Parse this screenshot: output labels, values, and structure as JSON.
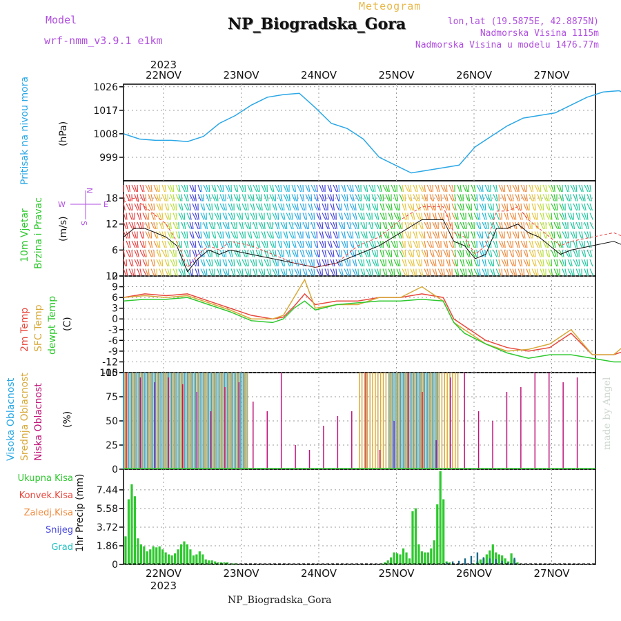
{
  "header": {
    "model_label": "Model",
    "model_value": "wrf-nmm_v3.9.1  e1km",
    "product": "Meteogram",
    "title": "NP_Biogradska_Gora",
    "lonlat": "lon,lat (19.5875E, 42.8875N)",
    "altitude": "Nadmorska Visina 1115m",
    "model_altitude": "Nadmorska Visina u modelu 1476.77m",
    "credit": "made by Angel",
    "bottom_name": "NP_Biogradska_Gora"
  },
  "colors": {
    "pressure": "#2aa7e6",
    "temp2m": "#e8473c",
    "sfc": "#d8a93a",
    "dewpt": "#2ec82e",
    "high_cloud": "#2aa7e6",
    "mid_cloud": "#d8a93a",
    "low_cloud": "#c0157a",
    "total_rain": "#2ec82e",
    "conv_rain": "#e8473c",
    "frz_rain": "#f08a3c",
    "snow": "#4444dd",
    "hail": "#1fc0c0",
    "axis_label_purple": "#b04fe0"
  },
  "time_axis": {
    "year": "2023",
    "days": [
      "22NOV",
      "23NOV",
      "24NOV",
      "25NOV",
      "26NOV",
      "27NOV"
    ]
  },
  "panels": {
    "pressure": {
      "label_colored": "Pritisak na nivou mora",
      "unit": "(hPa)"
    },
    "wind": {
      "label_colored_1": "10m Vjetar",
      "label_colored_2": "Brzina i Pravac",
      "unit": "(m/s)",
      "compass_n": "N",
      "compass_s": "S",
      "compass_w": "W",
      "compass_e": "E"
    },
    "temp": {
      "label_2m": "2m Temp",
      "label_sfc": "SFC Temp",
      "label_dew": "dewpt Temp",
      "unit": "(C)"
    },
    "cloud": {
      "label_high": "Visoka Oblacnost",
      "label_mid": "Srednja Oblacnost",
      "label_low": "Niska Oblacnost",
      "unit": "(%)"
    },
    "precip": {
      "axis_label": "1hr Precip (mm)",
      "legend": [
        "Ukupna Kisa",
        "Konvek.Kisa",
        "Zaledj.Kisa",
        "Snijeg",
        "Grad"
      ]
    }
  },
  "chart_data": [
    {
      "type": "line",
      "id": "pressure",
      "ylabel": "(hPa)",
      "yticks": [
        "1026",
        "1017",
        "1008",
        "999"
      ],
      "ylim": [
        990,
        1027
      ],
      "x_hours": [
        0,
        6,
        12,
        18,
        24,
        30,
        36,
        42,
        48,
        54,
        60,
        66,
        72,
        78,
        84,
        90,
        96,
        102,
        108,
        114,
        120,
        126,
        132,
        138,
        144
      ],
      "series": [
        {
          "values": [
            1008,
            1006,
            1005.5,
            1005.5,
            1005,
            1007,
            1012,
            1015,
            1019,
            1022,
            1023,
            1023.5,
            1018,
            1012,
            1010,
            1006,
            999,
            996,
            993,
            994,
            995,
            996,
            1003,
            1007,
            1011,
            1014,
            1015,
            1016,
            1019,
            1022,
            1024,
            1024.5,
            1022
          ],
          "x_hours": [
            0,
            6,
            12,
            18,
            24,
            30,
            36,
            42,
            48,
            54,
            60,
            66,
            72,
            78,
            84,
            90,
            96,
            102,
            108,
            114,
            120,
            126,
            132,
            138,
            144,
            150,
            156,
            162,
            168,
            174,
            180,
            186,
            192
          ]
        }
      ]
    },
    {
      "type": "line",
      "id": "wind_speed",
      "ylabel": "(m/s)",
      "yticks": [
        "18",
        "12",
        "6",
        "0"
      ],
      "ylim": [
        0,
        22
      ],
      "series": [
        {
          "values": [
            9,
            11,
            11,
            10,
            9,
            7,
            1,
            4,
            6,
            5,
            6,
            5,
            4,
            3,
            2,
            3,
            5,
            7,
            10,
            13,
            13,
            8,
            7,
            4,
            5,
            11,
            11,
            12,
            10,
            9,
            7,
            5,
            6,
            7,
            8,
            6
          ],
          "x_hours": [
            0,
            4,
            8,
            12,
            16,
            20,
            24,
            28,
            32,
            36,
            40,
            48,
            56,
            64,
            72,
            80,
            88,
            96,
            104,
            112,
            120,
            124,
            128,
            132,
            136,
            140,
            144,
            148,
            152,
            156,
            160,
            164,
            168,
            176,
            184,
            192
          ]
        },
        {
          "values": [
            17,
            18,
            16,
            14,
            12,
            8,
            2,
            5,
            7,
            6,
            8,
            7,
            5,
            3,
            2,
            3,
            7,
            9,
            13,
            16,
            16,
            10,
            9,
            5,
            7,
            15,
            15,
            16,
            13,
            11,
            9,
            7,
            8,
            9,
            10,
            8
          ],
          "x_hours": [
            0,
            4,
            8,
            12,
            16,
            20,
            24,
            28,
            32,
            36,
            40,
            48,
            56,
            64,
            72,
            80,
            88,
            96,
            104,
            112,
            120,
            124,
            128,
            132,
            136,
            140,
            144,
            148,
            152,
            156,
            160,
            164,
            168,
            176,
            184,
            192
          ]
        }
      ]
    },
    {
      "type": "line",
      "id": "temperature",
      "ylabel": "(C)",
      "yticks": [
        "12",
        "9",
        "6",
        "3",
        "0",
        "-3",
        "-6",
        "-9",
        "-12",
        "-15"
      ],
      "ylim": [
        -15,
        12
      ],
      "x_hours": [
        0,
        8,
        16,
        24,
        32,
        40,
        48,
        56,
        60,
        64,
        68,
        72,
        80,
        88,
        96,
        104,
        112,
        120,
        124,
        128,
        136,
        144,
        152,
        160,
        168,
        176,
        184,
        192
      ],
      "series": [
        {
          "name": "2m Temp",
          "values": [
            6,
            7,
            6.5,
            7,
            5,
            3,
            1,
            0,
            0.5,
            3.5,
            7,
            4,
            5,
            5,
            6,
            6,
            7,
            6,
            0,
            -2,
            -6,
            -8,
            -9,
            -8,
            -4,
            -10,
            -10,
            -8
          ]
        },
        {
          "name": "SFC Temp",
          "values": [
            6,
            6.5,
            6,
            6.5,
            4.5,
            2.5,
            0,
            0,
            1,
            6,
            11,
            3,
            4,
            4,
            6,
            6,
            9,
            5,
            -1,
            -3,
            -7,
            -9,
            -8.5,
            -7,
            -3,
            -10,
            -10,
            -5
          ]
        },
        {
          "name": "dewpt Temp",
          "values": [
            5,
            5.5,
            5.5,
            6,
            4,
            2,
            -0.5,
            -1,
            0,
            3,
            5,
            2.5,
            4,
            4.5,
            5,
            5,
            5.5,
            5,
            -1,
            -4,
            -7,
            -9.5,
            -11,
            -10,
            -10,
            -11,
            -12,
            -12
          ]
        }
      ]
    },
    {
      "type": "bar",
      "id": "cloud_cover",
      "ylabel": "(%)",
      "yticks": [
        "100",
        "75",
        "50",
        "25",
        "0"
      ],
      "ylim": [
        0,
        100
      ],
      "series": [
        {
          "name": "Visoka Oblacnost",
          "segments": [
            [
              0,
              46
            ],
            [
              100,
              118
            ]
          ],
          "value": 100
        },
        {
          "name": "Srednja Oblacnost",
          "segments": [
            [
              0,
              46
            ],
            [
              88,
              125
            ]
          ],
          "value": 100
        },
        {
          "name": "Niska Oblacnost",
          "sparse_values": [
            100,
            95,
            90,
            95,
            88,
            80,
            60,
            85,
            90,
            70,
            60,
            100,
            25,
            20,
            45,
            55,
            60,
            100,
            20,
            50,
            100,
            80,
            30,
            95,
            100,
            60,
            50,
            80,
            85,
            100,
            100,
            90,
            95
          ]
        }
      ]
    },
    {
      "type": "bar",
      "id": "precipitation",
      "ylabel": "1hr Precip (mm)",
      "yticks": [
        "7.44",
        "5.58",
        "3.72",
        "1.86",
        "0"
      ],
      "ylim": [
        0,
        9.5
      ],
      "series": [
        {
          "name": "Ukupna Kisa",
          "x_hours": [
            0,
            1,
            2,
            3,
            4,
            5,
            6,
            7,
            8,
            9,
            10,
            11,
            12,
            13,
            14,
            15,
            16,
            17,
            18,
            19,
            20,
            21,
            22,
            23,
            24,
            25,
            26,
            27,
            28,
            29,
            30,
            31,
            32,
            33,
            34,
            35,
            36,
            37,
            38,
            39,
            40,
            41,
            42,
            43,
            44,
            45,
            46,
            47,
            48,
            49,
            50,
            51,
            52,
            53,
            54,
            55,
            56,
            57,
            58,
            59,
            60,
            61,
            62,
            63,
            64,
            65,
            66,
            67,
            68,
            69,
            70,
            71,
            72,
            73,
            74,
            75,
            76,
            77,
            78,
            79,
            80,
            81,
            82,
            83,
            84,
            85,
            86,
            87,
            88,
            89,
            90,
            91,
            92,
            93,
            94,
            95,
            96,
            97,
            98,
            99,
            100,
            101,
            102,
            103,
            104,
            105,
            106,
            107,
            108,
            109,
            110,
            111,
            112,
            113,
            114,
            115,
            116,
            117,
            118,
            119,
            120,
            121,
            122,
            123,
            124,
            125,
            126,
            127,
            128,
            129,
            130,
            131,
            132,
            133,
            134,
            135,
            136,
            137,
            138,
            139,
            140,
            141,
            142,
            143,
            144
          ],
          "values": [
            2.8,
            6.5,
            8,
            6.8,
            2.6,
            2.0,
            1.8,
            1.3,
            1.5,
            1.8,
            1.7,
            1.8,
            1.5,
            1.2,
            1.0,
            0.9,
            1.1,
            1.5,
            2.0,
            2.3,
            2.0,
            1.5,
            0.9,
            1.0,
            1.3,
            1.0,
            0.5,
            0.4,
            0.4,
            0.3,
            0.2,
            0.2,
            0.2,
            0.2,
            0.1,
            0.1,
            0.1,
            0,
            0,
            0,
            0,
            0,
            0,
            0,
            0,
            0,
            0,
            0,
            0,
            0,
            0,
            0,
            0,
            0,
            0,
            0,
            0,
            0,
            0,
            0,
            0,
            0,
            0,
            0,
            0,
            0,
            0,
            0,
            0,
            0,
            0,
            0,
            0,
            0,
            0,
            0,
            0,
            0,
            0,
            0,
            0,
            0,
            0,
            0.1,
            0.2,
            0.4,
            0.7,
            1.2,
            1.1,
            1.0,
            1.6,
            1.2,
            0.6,
            5.3,
            5.6,
            2.0,
            1.3,
            1.2,
            1.2,
            1.6,
            2.4,
            6.0,
            9.3,
            6.5,
            0.3,
            0.2,
            0,
            0,
            0,
            0,
            0,
            0,
            0,
            0.1,
            0.3,
            0.5,
            0.6,
            1.0,
            1.4,
            2.0,
            1.2,
            1.0,
            0.9,
            0.6,
            0.3,
            1.1,
            0.5,
            0.2,
            0,
            0,
            0,
            0,
            0,
            0,
            0,
            0,
            0,
            0,
            0,
            0,
            0,
            0,
            0,
            0,
            0
          ]
        },
        {
          "name": "Snijeg",
          "x_hours": [
            104,
            106,
            108,
            110,
            112,
            114,
            116,
            118,
            120,
            122,
            124,
            126
          ],
          "values": [
            0.3,
            0.5,
            0.6,
            1.0,
            1.4,
            2.0,
            1.2,
            1.0,
            0.9,
            0.6,
            0.3,
            1.1
          ]
        }
      ]
    }
  ]
}
